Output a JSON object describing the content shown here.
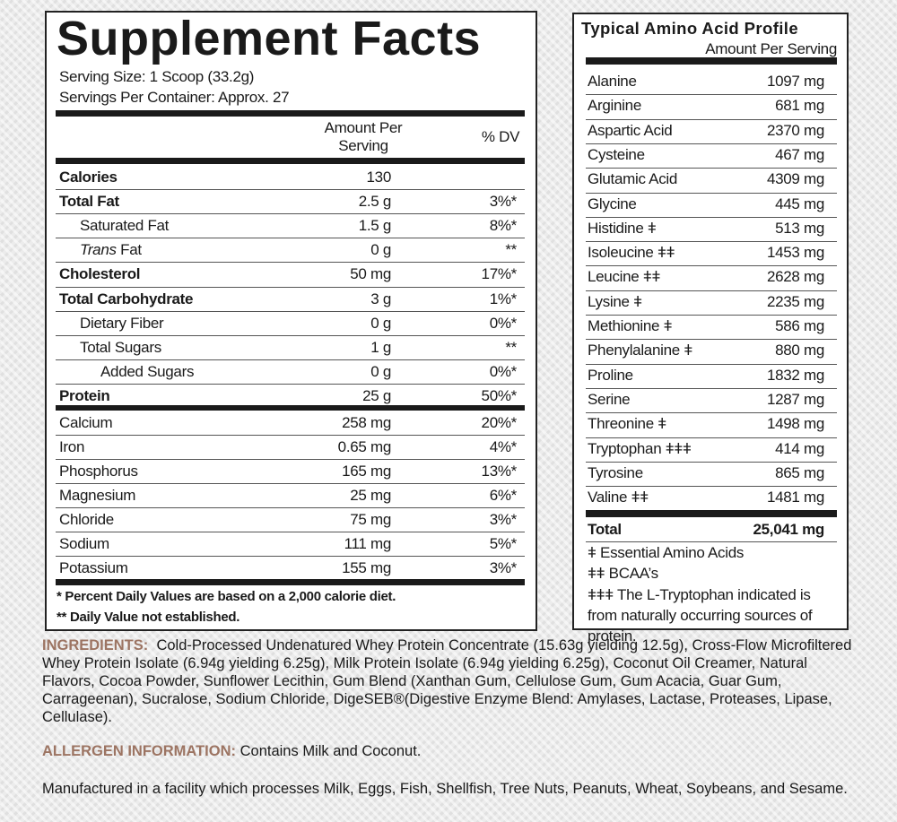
{
  "supplement_facts": {
    "title": "Supplement Facts",
    "serving_size": "Serving Size: 1 Scoop (33.2g)",
    "servings_per_container": "Servings Per Container: Approx. 27",
    "header": {
      "amount": "Amount Per Serving",
      "dv": "% DV"
    },
    "rows": [
      {
        "name": "Calories",
        "amount": "130",
        "dv": null
      },
      {
        "name": "Total Fat",
        "amount": "2.5 g",
        "dv": "3%*"
      },
      {
        "name": "Saturated Fat",
        "amount": "1.5 g",
        "dv": "8%*"
      },
      {
        "name": {
          "italic": "Trans",
          "text": "Fat"
        },
        "amount": "0 g",
        "dv": "**"
      },
      {
        "name": "Cholesterol",
        "amount": "50 mg",
        "dv": "17%*"
      },
      {
        "name": "Total Carbohydrate",
        "amount": "3 g",
        "dv": "1%*"
      },
      {
        "name": "Dietary Fiber",
        "amount": "0 g",
        "dv": "0%*"
      },
      {
        "name": "Total Sugars",
        "amount": "1 g",
        "dv": "**"
      },
      {
        "name": "Added Sugars",
        "amount": "0 g",
        "dv": "0%*"
      },
      {
        "name": "Protein",
        "amount": "25 g",
        "dv": "50%*"
      }
    ],
    "minerals": [
      {
        "name": "Calcium",
        "amount": "258 mg",
        "dv": "20%*"
      },
      {
        "name": "Iron",
        "amount": "0.65 mg",
        "dv": "4%*"
      },
      {
        "name": "Phosphorus",
        "amount": "165 mg",
        "dv": "13%*"
      },
      {
        "name": "Magnesium",
        "amount": "25 mg",
        "dv": "6%*"
      },
      {
        "name": "Chloride",
        "amount": "75 mg",
        "dv": "3%*"
      },
      {
        "name": "Sodium",
        "amount": "111 mg",
        "dv": "5%*"
      },
      {
        "name": "Potassium",
        "amount": "155 mg",
        "dv": "3%*"
      }
    ],
    "footnotes": [
      "* Percent Daily Values are based on a 2,000 calorie diet.",
      "** Daily Value not established."
    ]
  },
  "amino_profile": {
    "title": "Typical Amino Acid Profile",
    "subtitle": "Amount Per Serving",
    "rows": [
      {
        "name": "Alanine",
        "amount": "1097 mg"
      },
      {
        "name": "Arginine",
        "amount": "681 mg"
      },
      {
        "name": "Aspartic Acid",
        "amount": "2370 mg"
      },
      {
        "name": "Cysteine",
        "amount": "467 mg"
      },
      {
        "name": "Glutamic Acid",
        "amount": "4309 mg"
      },
      {
        "name": "Glycine",
        "amount": "445 mg"
      },
      {
        "name": "Histidine ǂ",
        "amount": "513 mg"
      },
      {
        "name": "Isoleucine ǂǂ",
        "amount": "1453 mg"
      },
      {
        "name": "Leucine ǂǂ",
        "amount": "2628 mg"
      },
      {
        "name": "Lysine ǂ",
        "amount": "2235 mg"
      },
      {
        "name": "Methionine ǂ",
        "amount": "586 mg"
      },
      {
        "name": "Phenylalanine ǂ",
        "amount": "880 mg"
      },
      {
        "name": "Proline",
        "amount": "1832 mg"
      },
      {
        "name": "Serine",
        "amount": "1287 mg"
      },
      {
        "name": "Threonine ǂ",
        "amount": "1498 mg"
      },
      {
        "name": "Tryptophan ǂǂǂ",
        "amount": "414 mg"
      },
      {
        "name": "Tyrosine",
        "amount": "865 mg"
      },
      {
        "name": "Valine ǂǂ",
        "amount": "1481 mg"
      }
    ],
    "total": {
      "name": "Total",
      "amount": "25,041 mg"
    },
    "footnotes": [
      "ǂ Essential Amino Acids",
      "ǂǂ BCAA’s",
      "ǂǂǂ The L-Tryptophan indicated is from naturally occurring sources of protein."
    ]
  },
  "ingredients": {
    "label": "INGREDIENTS:",
    "text": "Cold-Processed Undenatured Whey Protein Concentrate (15.63g yielding 12.5g), Cross-Flow Microfiltered Whey Protein Isolate (6.94g yielding 6.25g), Milk Protein Isolate (6.94g yielding 6.25g), Coconut Oil Creamer, Natural Flavors, Cocoa Powder, Sunflower Lecithin, Gum Blend (Xanthan Gum, Cellulose Gum, Gum Acacia, Guar Gum, Carrageenan), Sucralose, Sodium Chloride, DigeSEB®(Digestive Enzyme Blend: Amylases, Lactase, Proteases, Lipase, Cellulase)."
  },
  "allergen": {
    "label": "ALLERGEN INFORMATION:",
    "text": "Contains Milk and Coconut."
  },
  "facility": "Manufactured in a facility which processes Milk, Eggs, Fish, Shellfish, Tree Nuts, Peanuts, Wheat, Soybeans, and Sesame."
}
